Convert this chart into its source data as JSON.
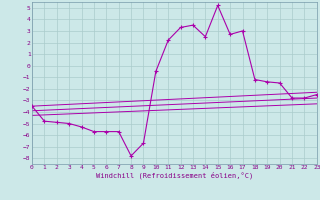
{
  "xlabel": "Windchill (Refroidissement éolien,°C)",
  "bg_color": "#cce8e8",
  "line_color": "#aa00aa",
  "grid_color": "#aacccc",
  "xlim": [
    0,
    23
  ],
  "ylim": [
    -8.5,
    5.5
  ],
  "xticks": [
    0,
    1,
    2,
    3,
    4,
    5,
    6,
    7,
    8,
    9,
    10,
    11,
    12,
    13,
    14,
    15,
    16,
    17,
    18,
    19,
    20,
    21,
    22,
    23
  ],
  "yticks": [
    -8,
    -7,
    -6,
    -5,
    -4,
    -3,
    -2,
    -1,
    0,
    1,
    2,
    3,
    4,
    5
  ],
  "series": [
    [
      0,
      -3.5
    ],
    [
      1,
      -4.8
    ],
    [
      2,
      -4.9
    ],
    [
      3,
      -5.0
    ],
    [
      4,
      -5.3
    ],
    [
      5,
      -5.7
    ],
    [
      6,
      -5.7
    ],
    [
      7,
      -5.7
    ],
    [
      8,
      -7.8
    ],
    [
      9,
      -6.7
    ],
    [
      10,
      -0.5
    ],
    [
      11,
      2.2
    ],
    [
      12,
      3.3
    ],
    [
      13,
      3.5
    ],
    [
      14,
      2.5
    ],
    [
      15,
      5.2
    ],
    [
      16,
      2.7
    ],
    [
      17,
      3.0
    ],
    [
      18,
      -1.2
    ],
    [
      19,
      -1.4
    ],
    [
      20,
      -1.5
    ],
    [
      21,
      -2.8
    ],
    [
      22,
      -2.8
    ],
    [
      23,
      -2.5
    ]
  ],
  "line2": [
    [
      0,
      -3.5
    ],
    [
      23,
      -2.3
    ]
  ],
  "line3": [
    [
      0,
      -3.9
    ],
    [
      23,
      -2.8
    ]
  ],
  "line4": [
    [
      0,
      -4.3
    ],
    [
      23,
      -3.3
    ]
  ]
}
